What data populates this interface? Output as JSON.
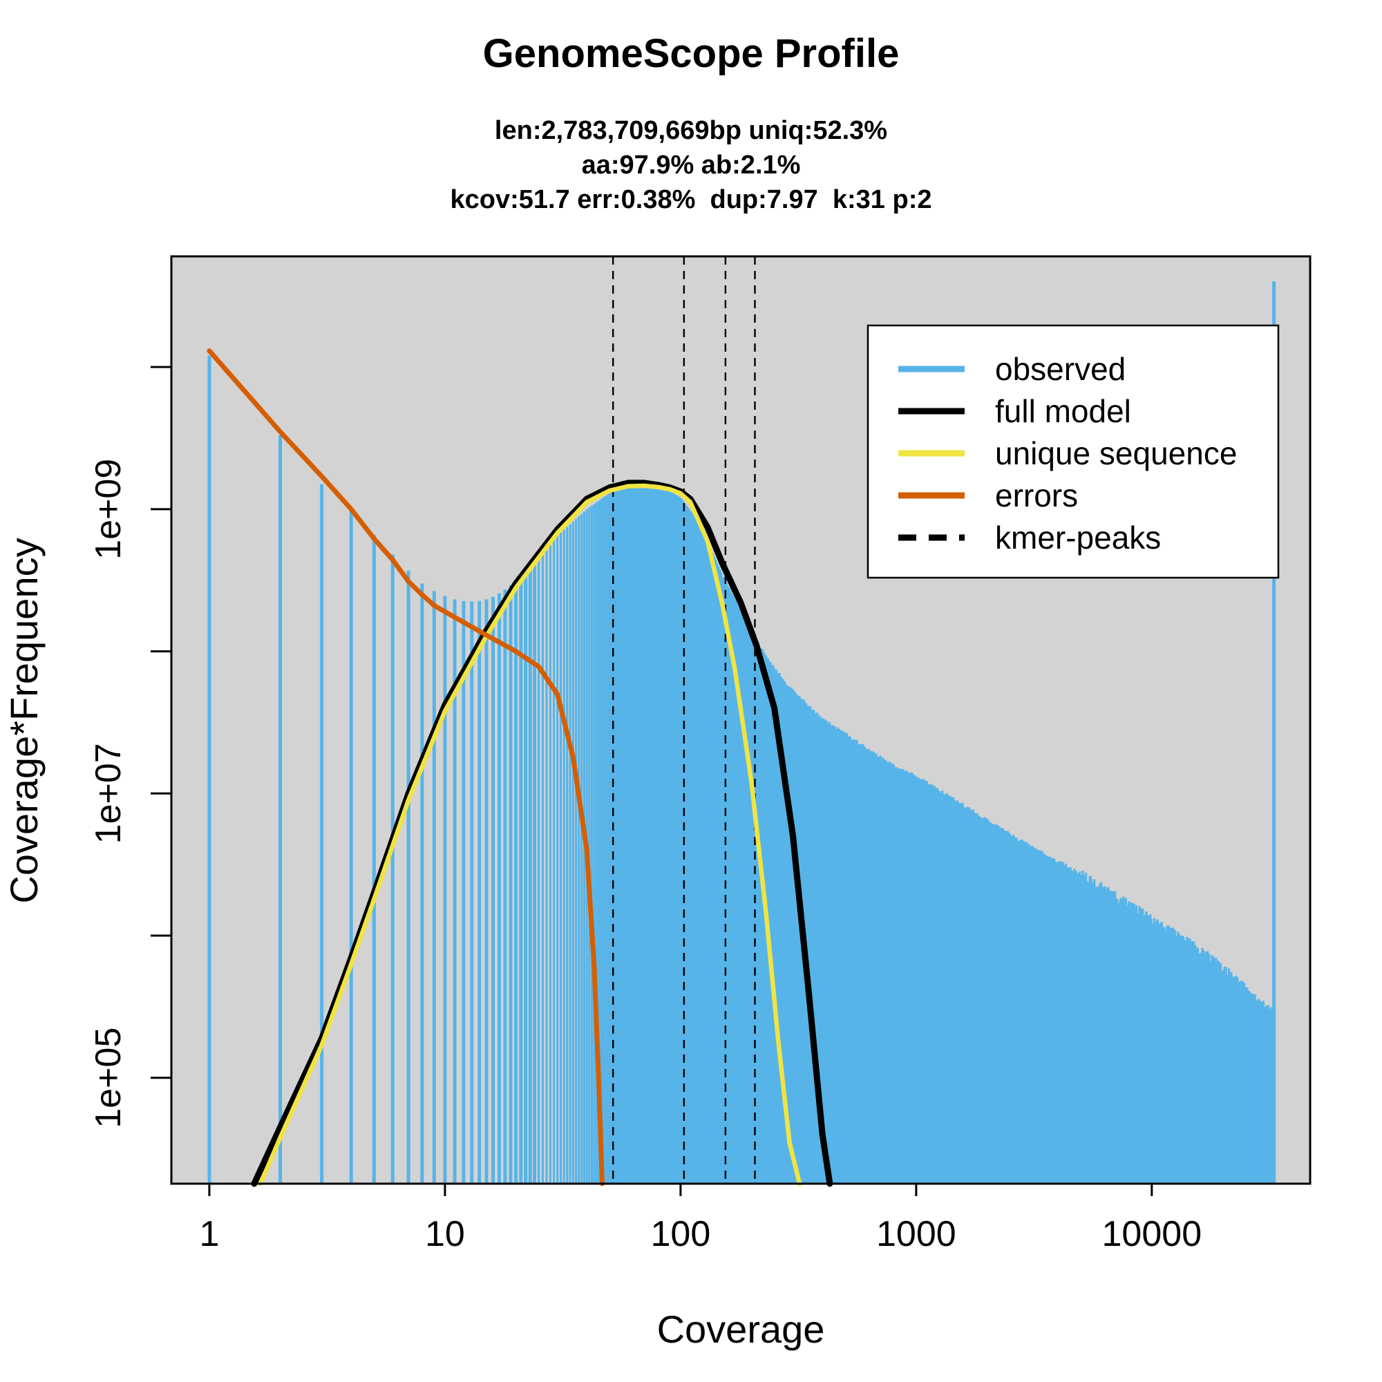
{
  "chart_data": {
    "type": "bar",
    "title": "GenomeScope Profile",
    "subtitle_lines": [
      "len:2,783,709,669bp uniq:52.3%",
      "aa:97.9% ab:2.1%",
      "kcov:51.7 err:0.38%  dup:7.97  k:31 p:2"
    ],
    "xlabel": "Coverage",
    "ylabel": "Coverage*Frequency",
    "x_scale": "log",
    "y_scale": "log",
    "xlim": [
      0.69,
      47000
    ],
    "ylim": [
      18000,
      60000000000
    ],
    "x_ticks": [
      {
        "value": 1,
        "label": "1"
      },
      {
        "value": 10,
        "label": "10"
      },
      {
        "value": 100,
        "label": "100"
      },
      {
        "value": 1000,
        "label": "1000"
      },
      {
        "value": 10000,
        "label": "10000"
      }
    ],
    "y_ticks": [
      {
        "value": 100000,
        "label": "1e+05"
      },
      {
        "value": 1000000,
        "label": ""
      },
      {
        "value": 10000000,
        "label": "1e+07"
      },
      {
        "value": 100000000,
        "label": ""
      },
      {
        "value": 1000000000,
        "label": "1e+09"
      },
      {
        "value": 10000000000,
        "label": ""
      }
    ],
    "background": "#D3D3D3",
    "legend": {
      "position": "top-right",
      "entries": [
        {
          "label": "observed",
          "color": "#56B4E9",
          "style": "solid"
        },
        {
          "label": "full model",
          "color": "#000000",
          "style": "solid"
        },
        {
          "label": "unique sequence",
          "color": "#F0E442",
          "style": "solid"
        },
        {
          "label": "errors",
          "color": "#D55E00",
          "style": "solid"
        },
        {
          "label": "kmer-peaks",
          "color": "#000000",
          "style": "dashed"
        }
      ]
    },
    "kmer_peaks": [
      51.7,
      103.4,
      155.1,
      206.8
    ],
    "observed_profile": {
      "color": "#56B4E9",
      "x": [
        1,
        2,
        3,
        4,
        5,
        6,
        7,
        8,
        9,
        10,
        11,
        12,
        13,
        14,
        15,
        16,
        17,
        18,
        19,
        20,
        22,
        25,
        30,
        40,
        50,
        60,
        70,
        80,
        90,
        100,
        120,
        150,
        200,
        250,
        300,
        400,
        500,
        700,
        1000,
        1500,
        2000,
        3000,
        5000,
        7000,
        10000,
        15000,
        20000,
        28000,
        33000
      ],
      "y": [
        12000000000,
        3300000000,
        1500000000,
        980000000,
        660000000,
        480000000,
        370000000,
        300000000,
        265000000,
        245000000,
        232000000,
        226000000,
        224000000,
        226000000,
        232000000,
        242000000,
        256000000,
        272000000,
        292000000,
        315000000,
        370000000,
        470000000,
        650000000,
        1000000000,
        1300000000,
        1420000000,
        1450000000,
        1420000000,
        1340000000,
        1200000000,
        800000000,
        350000000,
        135000000,
        75000000,
        52000000,
        33000000,
        26000000,
        18000000,
        13000000,
        8700000,
        6400000,
        4300000,
        2700000,
        1900000,
        1300000,
        850000,
        600000,
        350000,
        280000
      ],
      "spike": {
        "x": 33000,
        "y": 40000000000
      }
    },
    "series": [
      {
        "name": "full model",
        "color": "#000000",
        "x": [
          1.55,
          2,
          3,
          4,
          5,
          7,
          10,
          15,
          20,
          30,
          40,
          50,
          60,
          70,
          80,
          90,
          100,
          110,
          130,
          150,
          180,
          210,
          250,
          300,
          350,
          400,
          430
        ],
        "y": [
          18000,
          45000,
          190000,
          700000,
          2000000,
          10000000,
          42000000,
          140000000,
          300000000,
          720000000,
          1180000000,
          1420000000,
          1530000000,
          1530000000,
          1480000000,
          1420000000,
          1330000000,
          1180000000,
          750000000,
          420000000,
          220000000,
          110000000,
          40000000,
          5000000,
          400000,
          40000,
          18000
        ]
      },
      {
        "name": "unique sequence",
        "color": "#F0E442",
        "x": [
          1.65,
          2,
          3,
          4,
          5,
          7,
          10,
          15,
          20,
          30,
          40,
          50,
          60,
          70,
          80,
          90,
          100,
          110,
          130,
          150,
          170,
          200,
          230,
          260,
          290,
          320
        ],
        "y": [
          18000,
          38000,
          170000,
          630000,
          1800000,
          9000000,
          38000000,
          128000000,
          280000000,
          680000000,
          1120000000,
          1350000000,
          1450000000,
          1460000000,
          1430000000,
          1380000000,
          1290000000,
          1120000000,
          600000000,
          220000000,
          75000000,
          12000000,
          1500000,
          180000,
          35000,
          18000
        ]
      },
      {
        "name": "errors",
        "color": "#D55E00",
        "x": [
          1,
          2,
          3,
          4,
          5,
          6,
          7,
          8,
          9,
          10,
          12,
          15,
          20,
          25,
          30,
          35,
          40,
          43,
          45,
          46,
          46.5
        ],
        "y": [
          13000000000,
          3500000000,
          1700000000,
          1000000000,
          620000000,
          440000000,
          310000000,
          250000000,
          210000000,
          190000000,
          160000000,
          130000000,
          100000000,
          78000000,
          50000000,
          18000000,
          4000000,
          600000,
          90000,
          30000,
          18000
        ]
      }
    ]
  }
}
